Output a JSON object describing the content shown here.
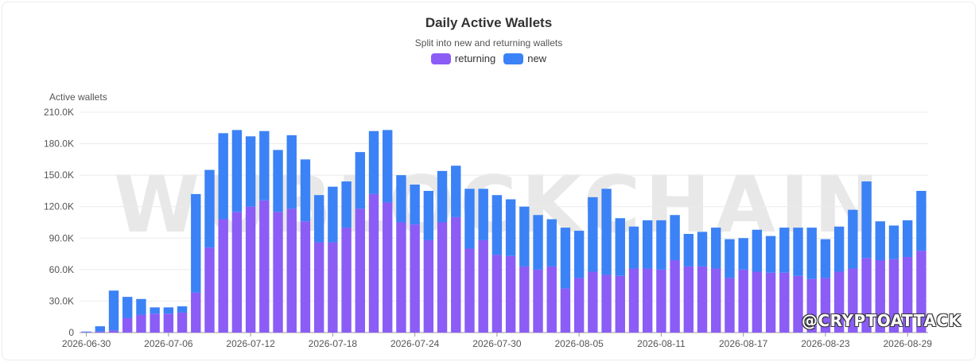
{
  "chart_data": {
    "type": "bar",
    "stacked": true,
    "title": "Daily Active Wallets",
    "subtitle": "Split into new and returning wallets",
    "ylabel": "Active wallets",
    "xlabel": "",
    "ylim": [
      0,
      210000
    ],
    "y_ticks": [
      "0",
      "30.0K",
      "60.0K",
      "90.0K",
      "120.0K",
      "150.0K",
      "180.0K",
      "210.0K"
    ],
    "x_tick_labels": [
      "2026-06-30",
      "2026-07-06",
      "2026-07-12",
      "2026-07-18",
      "2026-07-24",
      "2026-07-30",
      "2026-08-05",
      "2026-08-11",
      "2026-08-17",
      "2026-08-23",
      "2026-08-29"
    ],
    "grid": true,
    "legend_position": "top-center",
    "categories": [
      "2026-06-30",
      "2026-07-01",
      "2026-07-02",
      "2026-07-03",
      "2026-07-04",
      "2026-07-05",
      "2026-07-06",
      "2026-07-07",
      "2026-07-08",
      "2026-07-09",
      "2026-07-10",
      "2026-07-11",
      "2026-07-12",
      "2026-07-13",
      "2026-07-14",
      "2026-07-15",
      "2026-07-16",
      "2026-07-17",
      "2026-07-18",
      "2026-07-19",
      "2026-07-20",
      "2026-07-21",
      "2026-07-22",
      "2026-07-23",
      "2026-07-24",
      "2026-07-25",
      "2026-07-26",
      "2026-07-27",
      "2026-07-28",
      "2026-07-29",
      "2026-07-30",
      "2026-07-31",
      "2026-08-01",
      "2026-08-02",
      "2026-08-03",
      "2026-08-04",
      "2026-08-05",
      "2026-08-06",
      "2026-08-07",
      "2026-08-08",
      "2026-08-09",
      "2026-08-10",
      "2026-08-11",
      "2026-08-12",
      "2026-08-13",
      "2026-08-14",
      "2026-08-15",
      "2026-08-16",
      "2026-08-17",
      "2026-08-18",
      "2026-08-19",
      "2026-08-20",
      "2026-08-21",
      "2026-08-22",
      "2026-08-23",
      "2026-08-24",
      "2026-08-25",
      "2026-08-26",
      "2026-08-27",
      "2026-08-28",
      "2026-08-29",
      "2026-08-30"
    ],
    "series": [
      {
        "name": "returning",
        "color": "#8b5cf6",
        "values": [
          500,
          1000,
          2000,
          14000,
          17000,
          18000,
          18000,
          19000,
          38000,
          81000,
          108000,
          115000,
          120000,
          126000,
          115000,
          118000,
          106000,
          86000,
          86000,
          100000,
          118000,
          132000,
          124000,
          105000,
          103000,
          88000,
          105000,
          110000,
          80000,
          88000,
          74000,
          73000,
          63000,
          60000,
          63000,
          42000,
          52000,
          58000,
          55000,
          54000,
          61000,
          61000,
          60000,
          69000,
          63000,
          63000,
          61000,
          52000,
          60000,
          58000,
          57000,
          57000,
          54000,
          51000,
          52000,
          58000,
          61000,
          71000,
          69000,
          70000,
          72000,
          78000
        ]
      },
      {
        "name": "new",
        "color": "#3b82f6",
        "values": [
          500,
          5000,
          38000,
          20000,
          15000,
          6000,
          6000,
          6000,
          94000,
          74000,
          82000,
          78000,
          67000,
          66000,
          59000,
          70000,
          59000,
          45000,
          53000,
          44000,
          54000,
          60000,
          69000,
          45000,
          38000,
          47000,
          49000,
          49000,
          57000,
          49000,
          57000,
          54000,
          57000,
          52000,
          45000,
          58000,
          45000,
          71000,
          82000,
          55000,
          40000,
          46000,
          47000,
          43000,
          31000,
          33000,
          39000,
          37000,
          30000,
          40000,
          35000,
          43000,
          46000,
          49000,
          37000,
          43000,
          56000,
          73000,
          37000,
          32000,
          35000,
          57000
        ]
      }
    ]
  },
  "watermark": {
    "logo_text": "WUBLOCKCHAIN",
    "handle": "@CRYPTOATTACK"
  }
}
